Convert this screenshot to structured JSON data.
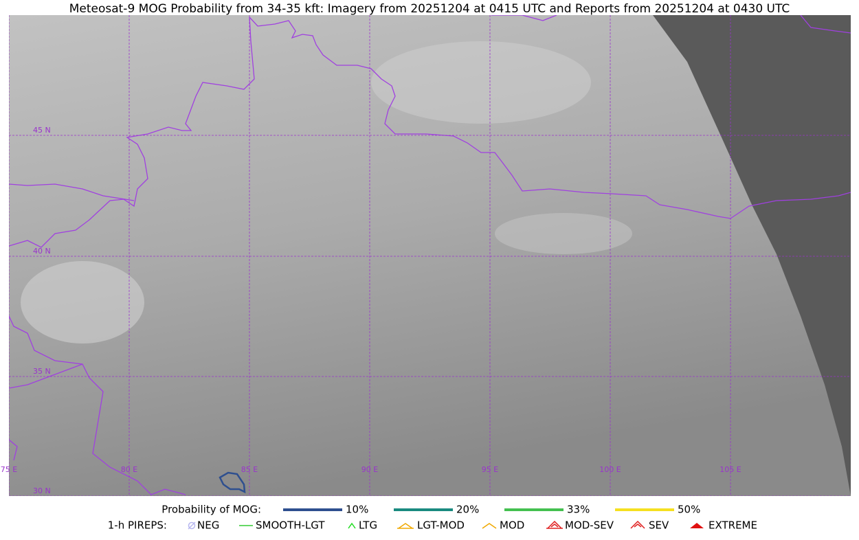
{
  "title": "Meteosat-9 MOG Probability from 34-35 kft: Imagery from 20251204 at 0415 UTC and Reports from 20251204 at 0430 UTC",
  "map": {
    "lat_labels": [
      "45 N",
      "40 N",
      "35 N",
      "30 N"
    ],
    "lon_labels": [
      "75 E",
      "80 E",
      "85 E",
      "90 E",
      "95 E",
      "100 E",
      "105 E"
    ]
  },
  "legend": {
    "mog_title": "Probability of MOG:",
    "mog_levels": [
      {
        "label": "10%",
        "color": "#2e4f8f"
      },
      {
        "label": "20%",
        "color": "#1a8a80"
      },
      {
        "label": "33%",
        "color": "#44c050"
      },
      {
        "label": "50%",
        "color": "#f5e020"
      }
    ],
    "pirep_title": "1-h PIREPS:",
    "pirep_types": [
      {
        "label": "NEG",
        "color": "#b8b8f0"
      },
      {
        "label": "SMOOTH-LGT",
        "color": "#33cc33"
      },
      {
        "label": "LTG",
        "color": "#22dd22"
      },
      {
        "label": "LGT-MOD",
        "color": "#f0a800"
      },
      {
        "label": "MOD",
        "color": "#f0a800"
      },
      {
        "label": "MOD-SEV",
        "color": "#e02020"
      },
      {
        "label": "SEV",
        "color": "#e02020"
      },
      {
        "label": "EXTREME",
        "color": "#e01010"
      }
    ]
  }
}
